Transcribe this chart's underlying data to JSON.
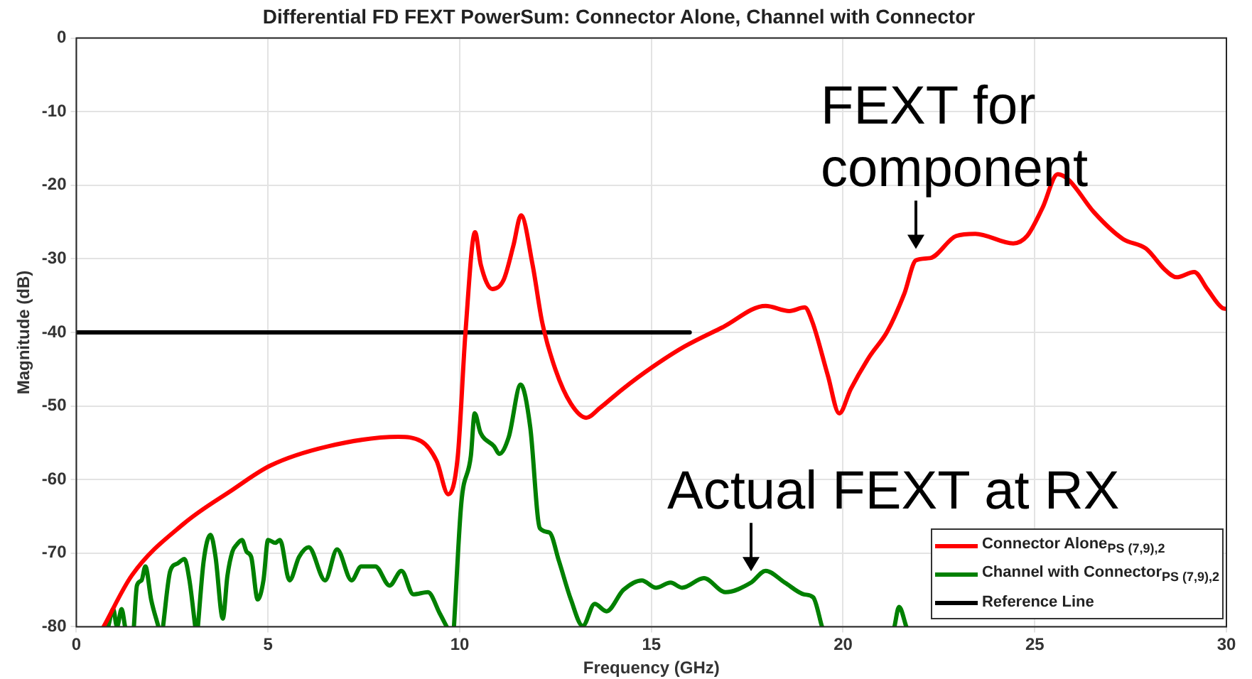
{
  "chart_data": {
    "type": "line",
    "title": "Differential FD FEXT PowerSum: Connector Alone, Channel with Connector",
    "xlabel": "Frequency (GHz)",
    "ylabel": "Magnitude (dB)",
    "xlim": [
      0,
      30
    ],
    "xticks": [
      0,
      5,
      10,
      15,
      20,
      25,
      30
    ],
    "ylim": [
      -80,
      0
    ],
    "yticks": [
      -80,
      -70,
      -60,
      -50,
      -40,
      -30,
      -20,
      -10,
      0
    ],
    "grid": true,
    "legend": "bottom right",
    "line_style": "solid",
    "marker": "none",
    "series": [
      {
        "name": "Connector Alone$_{PS (7,9),2}$",
        "color": "#ff0000",
        "x": [
          0.71,
          1.45,
          2.8,
          4.07,
          5.06,
          6.55,
          8.4,
          9.0,
          9.4,
          9.7,
          9.95,
          10.15,
          10.4,
          10.55,
          10.85,
          11.15,
          11.4,
          11.6,
          11.9,
          12.15,
          12.5,
          12.9,
          13.3,
          13.65,
          14.25,
          15,
          15.87,
          16.86,
          17.98,
          18.6,
          19,
          19.2,
          19.6,
          19.9,
          20.2,
          20.7,
          21.15,
          21.6,
          21.9,
          22.27,
          22.95,
          23.45,
          24.44,
          24.8,
          25.2,
          25.6,
          25.87,
          26.55,
          27.3,
          27.9,
          28.4,
          28.7,
          29.16,
          29.5,
          29.9,
          30
        ],
        "values": [
          -80,
          -73,
          -66,
          -61.4,
          -58.1,
          -55.5,
          -54.2,
          -54.8,
          -57.5,
          -62,
          -56.8,
          -40,
          -26.4,
          -30.8,
          -34.1,
          -32.8,
          -28.2,
          -24.1,
          -30.8,
          -38.6,
          -45.1,
          -49.7,
          -51.6,
          -50.3,
          -47.7,
          -44.8,
          -41.9,
          -39.3,
          -36.4,
          -37.1,
          -36.6,
          -38.6,
          -45.8,
          -51,
          -47.7,
          -43.2,
          -39.9,
          -34.7,
          -30.2,
          -29.9,
          -26.9,
          -26.6,
          -27.9,
          -26.9,
          -23.1,
          -18.5,
          -19.2,
          -23.7,
          -27.3,
          -28.6,
          -31.5,
          -32.5,
          -31.8,
          -34.1,
          -36.7,
          -36.8
        ]
      },
      {
        "name": "Channel with Connector$_{PS (7,9),2}$",
        "color": "#008000",
        "x": [
          0.83,
          0.96,
          1.06,
          1.18,
          1.27,
          1.4,
          1.5,
          1.58,
          1.7,
          1.8,
          1.95,
          2.14,
          2.2,
          2.26,
          2.45,
          2.64,
          2.82,
          2.95,
          3.1,
          3.14,
          3.17,
          3.32,
          3.5,
          3.63,
          3.82,
          3.94,
          4.07,
          4.19,
          4.32,
          4.44,
          4.56,
          4.73,
          4.88,
          5.0,
          5.19,
          5.31,
          5.56,
          5.81,
          6.06,
          6.49,
          6.8,
          7.18,
          7.43,
          7.8,
          8.17,
          8.48,
          8.79,
          9.17,
          9.48,
          9.66,
          9.75,
          9.85,
          10.04,
          10.29,
          10.39,
          10.54,
          10.9,
          11.03,
          11.28,
          11.59,
          11.84,
          12.09,
          12.34,
          12.59,
          12.9,
          13.21,
          13.52,
          13.83,
          14.27,
          14.75,
          15.12,
          15.5,
          15.8,
          16.37,
          16.93,
          17.6,
          17.98,
          18.48,
          18.98,
          19.22,
          19.45,
          20.4,
          21.34,
          21.46,
          21.65
        ],
        "values": [
          -80,
          -77.6,
          -80,
          -77.6,
          -80,
          null,
          -80,
          -74.4,
          -73.7,
          -71.8,
          -76.3,
          -80,
          null,
          -80,
          -72.4,
          -71.4,
          -70.8,
          -73.7,
          -80,
          null,
          -80,
          -71.1,
          -67.5,
          -70.5,
          -78.9,
          -73.1,
          -69.8,
          -68.8,
          -68.2,
          -69.8,
          -70.5,
          -76.3,
          -73.7,
          -68.2,
          -68.6,
          -68.2,
          -73.7,
          -70.5,
          -69.2,
          -73.7,
          -69.5,
          -73.7,
          -71.8,
          -71.8,
          -74.4,
          -72.4,
          -75.6,
          -75.3,
          -78.2,
          -80,
          null,
          -80,
          -63.3,
          -56.8,
          -51,
          -53.6,
          -55.5,
          -56.5,
          -54.2,
          -47.1,
          -52.9,
          -66.6,
          -67.2,
          -71.1,
          -76.3,
          -79.9,
          -76.9,
          -77.9,
          -75,
          -73.7,
          -74.7,
          -74,
          -74.7,
          -73.4,
          -75.3,
          -74,
          -72.4,
          -74,
          -75.6,
          -76,
          -80,
          null,
          -80,
          -77.3,
          -80
        ]
      },
      {
        "name": "Reference Line",
        "color": "#000000",
        "x": [
          0,
          16
        ],
        "values": [
          -40,
          -40
        ]
      }
    ],
    "annotations": [
      {
        "text": "FEXT for component",
        "x": 21.9,
        "y": -30.2
      },
      {
        "text": "Actual FEXT at RX",
        "x": 17.6,
        "y": -74
      }
    ]
  }
}
